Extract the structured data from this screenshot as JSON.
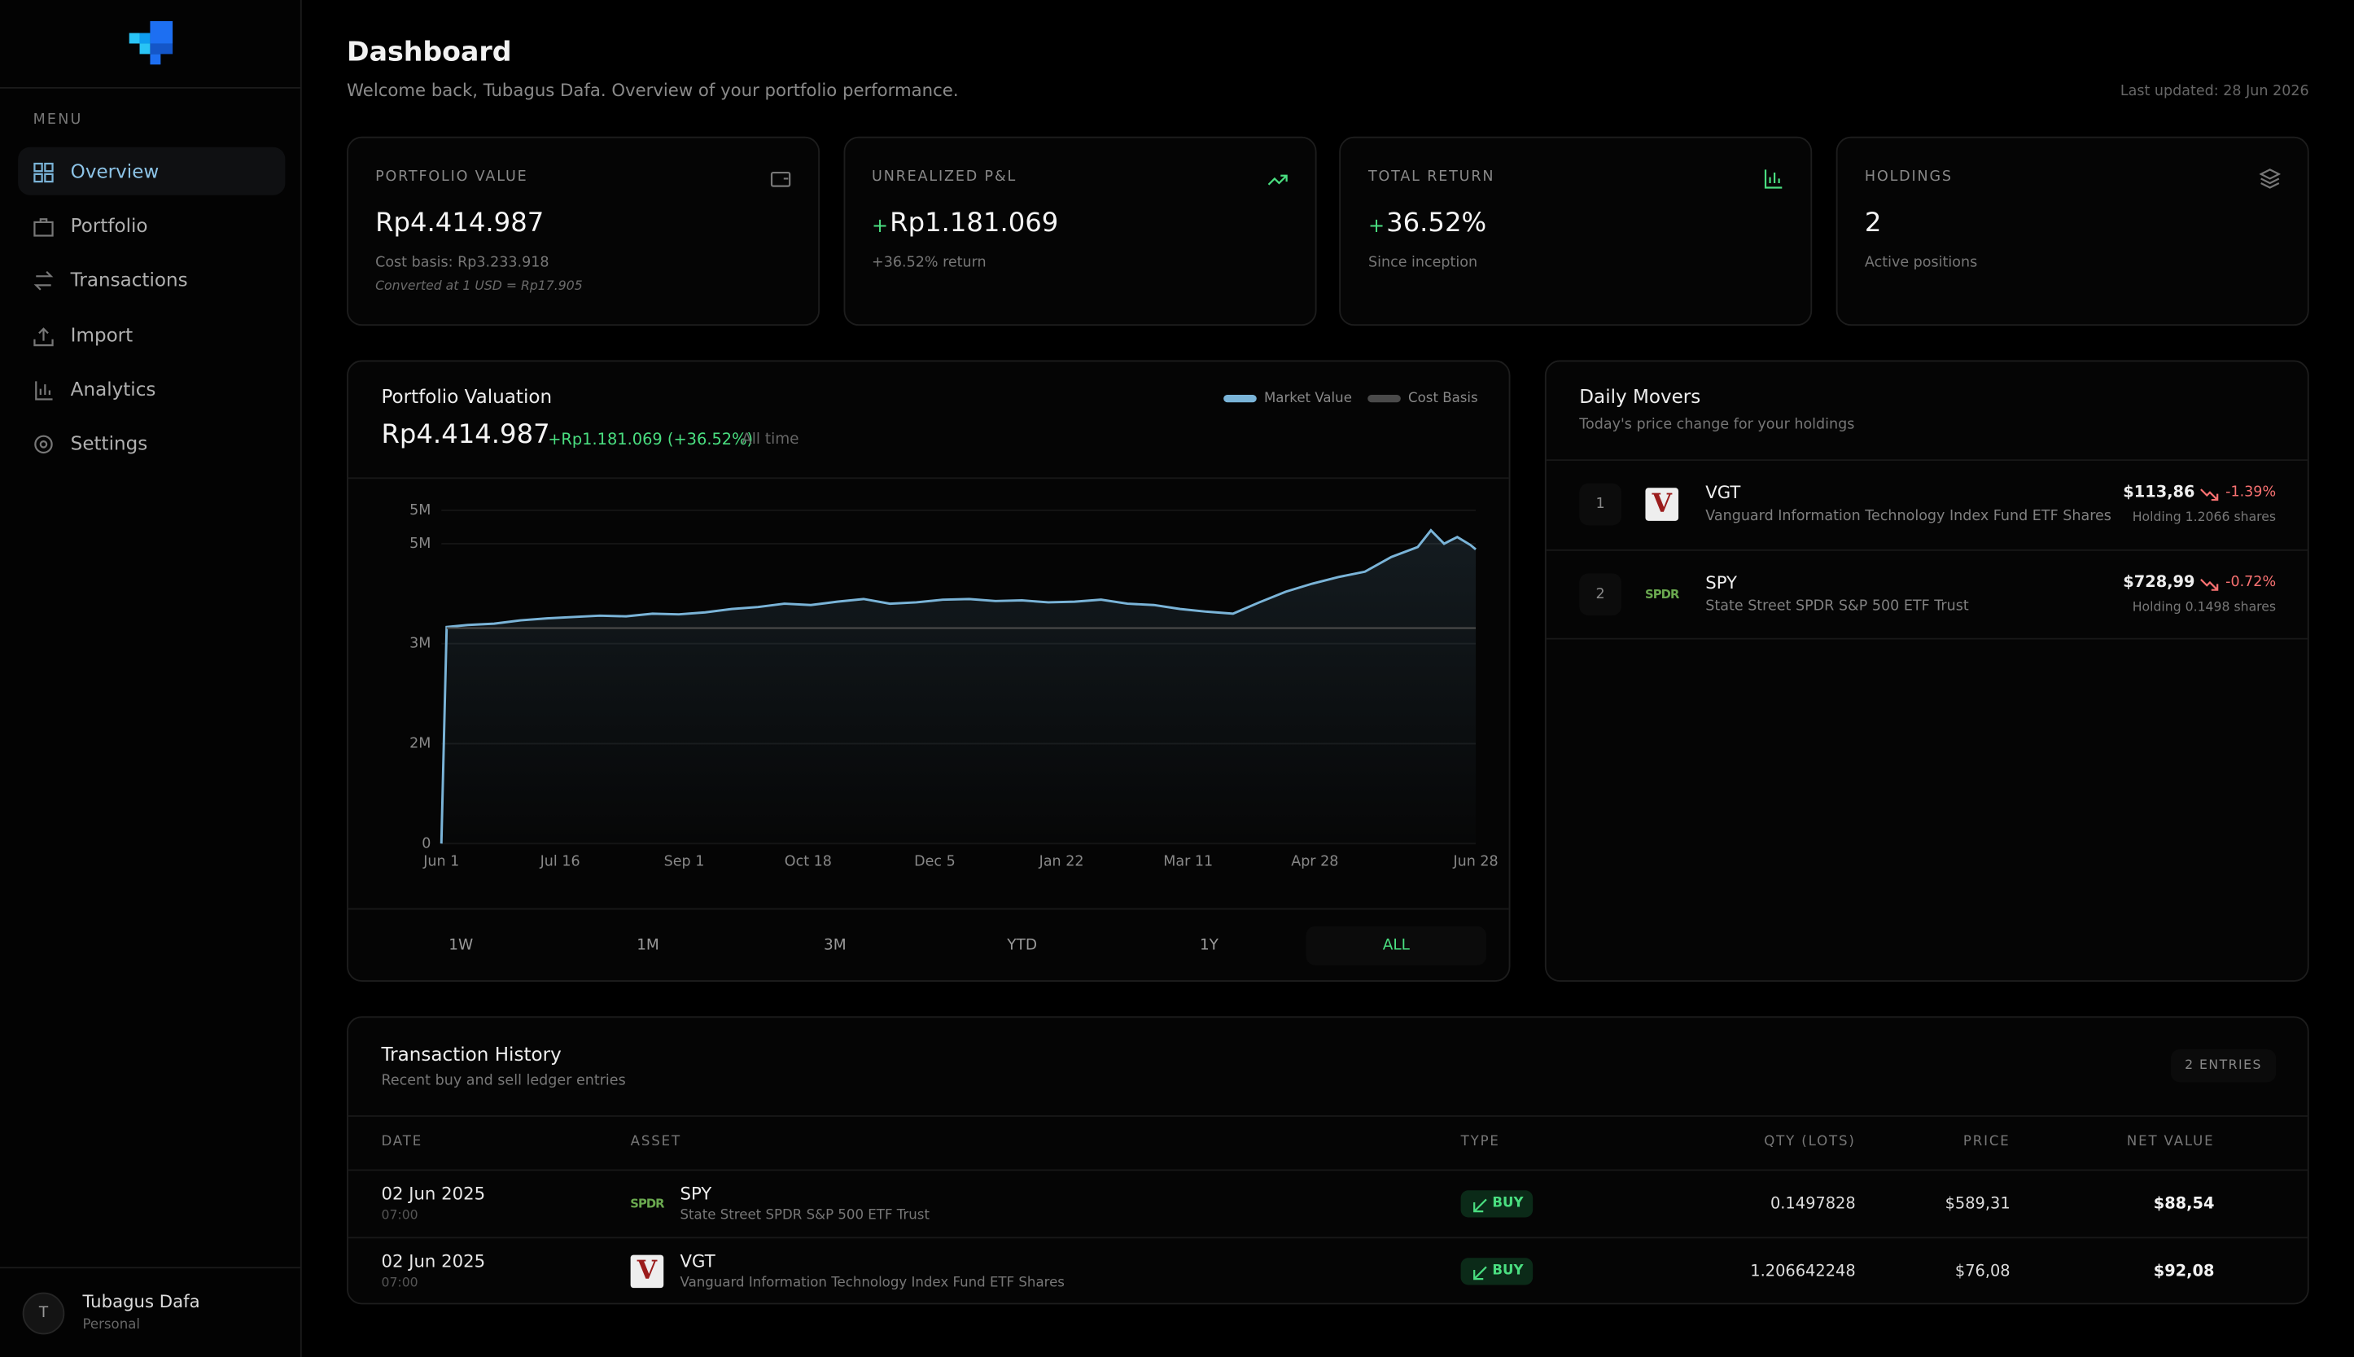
{
  "sidebar": {
    "menu_label": "MENU",
    "nav": [
      "Overview",
      "Portfolio",
      "Transactions",
      "Import",
      "Analytics",
      "Settings"
    ],
    "active_index": 0,
    "user": {
      "initial": "T",
      "name": "Tubagus Dafa",
      "plan": "Personal"
    }
  },
  "header": {
    "title": "Dashboard",
    "subtitle": "Welcome back, Tubagus Dafa. Overview of your portfolio performance.",
    "last_updated": "Last updated: 28 Jun 2026"
  },
  "cards": [
    {
      "label": "PORTFOLIO VALUE",
      "value": "Rp4.414.987",
      "notes": [
        "Cost basis: Rp3.233.918",
        "Converted at 1 USD = Rp17.905"
      ]
    },
    {
      "label": "UNREALIZED P&L",
      "sign": "+",
      "value": "Rp1.181.069",
      "notes": [
        "+36.52% return"
      ]
    },
    {
      "label": "TOTAL RETURN",
      "sign": "+",
      "value": "36.52%",
      "notes": [
        "Since inception"
      ]
    },
    {
      "label": "HOLDINGS",
      "value": "2",
      "notes": [
        "Active positions"
      ]
    }
  ],
  "valuation": {
    "title": "Portfolio Valuation",
    "value": "Rp4.414.987",
    "change": "+Rp1.181.069 (+36.52%)",
    "period": "All time",
    "ranges": [
      "1W",
      "1M",
      "3M",
      "YTD",
      "1Y",
      "ALL"
    ],
    "active_range": 5,
    "chart_data": {
      "type": "line",
      "grid": true,
      "x": [
        0,
        2,
        10,
        20,
        30,
        40,
        50,
        60,
        70,
        80,
        90,
        100,
        110,
        120,
        130,
        140,
        150,
        160,
        170,
        180,
        190,
        200,
        210,
        220,
        230,
        240,
        250,
        260,
        270,
        280,
        290,
        300,
        310,
        320,
        330,
        340,
        350,
        360,
        370,
        375,
        380,
        385,
        390,
        392
      ],
      "xlim": [
        0,
        392
      ],
      "xticks": [
        {
          "value": 0,
          "label": "Jun 1"
        },
        {
          "value": 45,
          "label": "Jul 16"
        },
        {
          "value": 92,
          "label": "Sep 1"
        },
        {
          "value": 139,
          "label": "Oct 18"
        },
        {
          "value": 187,
          "label": "Dec 5"
        },
        {
          "value": 235,
          "label": "Jan 22"
        },
        {
          "value": 283,
          "label": "Mar 11"
        },
        {
          "value": 331,
          "label": "Apr 28"
        },
        {
          "value": 392,
          "label": "Jun 28"
        }
      ],
      "ylim": [
        0,
        5000000
      ],
      "yticks": [
        0,
        {
          "value": 1500000,
          "label": "2M"
        },
        {
          "value": 3000000,
          "label": "3M"
        },
        {
          "value": 4500000,
          "label": "5M"
        },
        {
          "value": 5000000,
          "label": "5M"
        }
      ],
      "series": [
        {
          "name": "Market Value",
          "color": "#7ab4d8",
          "values": [
            0,
            3250000,
            3280000,
            3300000,
            3350000,
            3380000,
            3400000,
            3420000,
            3410000,
            3450000,
            3440000,
            3470000,
            3520000,
            3550000,
            3600000,
            3580000,
            3630000,
            3670000,
            3600000,
            3620000,
            3660000,
            3670000,
            3640000,
            3650000,
            3620000,
            3630000,
            3660000,
            3600000,
            3580000,
            3520000,
            3480000,
            3450000,
            3620000,
            3780000,
            3900000,
            4000000,
            4080000,
            4300000,
            4450000,
            4700000,
            4500000,
            4600000,
            4480000,
            4414987
          ]
        },
        {
          "name": "Cost Basis",
          "color": "#4a4a4a",
          "values": [
            null,
            3233918,
            3233918,
            3233918,
            3233918,
            3233918,
            3233918,
            3233918,
            3233918,
            3233918,
            3233918,
            3233918,
            3233918,
            3233918,
            3233918,
            3233918,
            3233918,
            3233918,
            3233918,
            3233918,
            3233918,
            3233918,
            3233918,
            3233918,
            3233918,
            3233918,
            3233918,
            3233918,
            3233918,
            3233918,
            3233918,
            3233918,
            3233918,
            3233918,
            3233918,
            3233918,
            3233918,
            3233918,
            3233918,
            3233918,
            3233918,
            3233918,
            3233918,
            3233918
          ]
        }
      ]
    }
  },
  "movers": {
    "title": "Daily Movers",
    "subtitle": "Today's price change for your holdings",
    "items": [
      {
        "rank": "1",
        "logo": "V",
        "ticker": "VGT",
        "name": "Vanguard Information Technology Index Fund ETF Shares",
        "price": "$113,86",
        "change": "-1.39%",
        "holding": "Holding 1.2066 shares"
      },
      {
        "rank": "2",
        "logo": "SPDR",
        "ticker": "SPY",
        "name": "State Street SPDR S&P 500 ETF Trust",
        "price": "$728,99",
        "change": "-0.72%",
        "holding": "Holding 0.1498 shares"
      }
    ]
  },
  "transactions": {
    "title": "Transaction History",
    "subtitle": "Recent buy and sell ledger entries",
    "count": "2 ENTRIES",
    "columns": [
      "DATE",
      "ASSET",
      "TYPE",
      "QTY (LOTS)",
      "PRICE",
      "NET VALUE"
    ],
    "rows": [
      {
        "date": "02 Jun 2025",
        "time": "07:00",
        "logo": "SPDR",
        "ticker": "SPY",
        "name": "State Street SPDR S&P 500 ETF Trust",
        "type": "BUY",
        "qty": "0.1497828",
        "price": "$589,31",
        "net": "$88,54"
      },
      {
        "date": "02 Jun 2025",
        "time": "07:00",
        "logo": "V",
        "ticker": "VGT",
        "name": "Vanguard Information Technology Index Fund ETF Shares",
        "type": "BUY",
        "qty": "1.206642248",
        "price": "$76,08",
        "net": "$92,08"
      }
    ]
  }
}
